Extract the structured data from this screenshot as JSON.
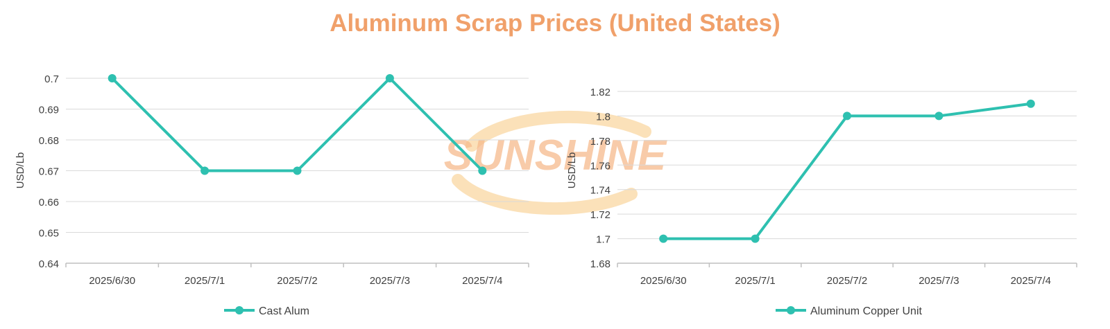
{
  "page": {
    "title": "Aluminum Scrap Prices (United States)",
    "title_color": "#F0A06A"
  },
  "watermark": {
    "text": "SUNSHINE",
    "color": "#F6B98C",
    "ring_color": "#FAD9A8"
  },
  "colors": {
    "series": "#2EC0B0",
    "grid": "#D9D9D9",
    "axis": "#BFBFBF",
    "tick_text": "#404040"
  },
  "chart_data": [
    {
      "type": "line",
      "categories": [
        "2025/6/30",
        "2025/7/1",
        "2025/7/2",
        "2025/7/3",
        "2025/7/4"
      ],
      "series": [
        {
          "name": "Cast Alum",
          "values": [
            0.7,
            0.67,
            0.67,
            0.7,
            0.67
          ]
        }
      ],
      "ylabel": "USD/Lb",
      "ylim": [
        0.64,
        0.7
      ],
      "yticks": [
        0.64,
        0.65,
        0.66,
        0.67,
        0.68,
        0.69,
        0.7
      ],
      "ytick_labels": [
        "0.64",
        "0.65",
        "0.66",
        "0.67",
        "0.68",
        "0.69",
        "0.7"
      ],
      "grid": true,
      "legend": "bottom"
    },
    {
      "type": "line",
      "categories": [
        "2025/6/30",
        "2025/7/1",
        "2025/7/2",
        "2025/7/3",
        "2025/7/4"
      ],
      "series": [
        {
          "name": "Aluminum Copper Unit",
          "values": [
            1.7,
            1.7,
            1.8,
            1.8,
            1.81
          ]
        }
      ],
      "ylabel": "USD/Lb",
      "ylim": [
        1.68,
        1.82
      ],
      "yticks": [
        1.68,
        1.7,
        1.72,
        1.74,
        1.76,
        1.78,
        1.8,
        1.82
      ],
      "ytick_labels": [
        "1.68",
        "1.7",
        "1.72",
        "1.74",
        "1.76",
        "1.78",
        "1.8",
        "1.82"
      ],
      "grid": true,
      "legend": "bottom"
    }
  ]
}
